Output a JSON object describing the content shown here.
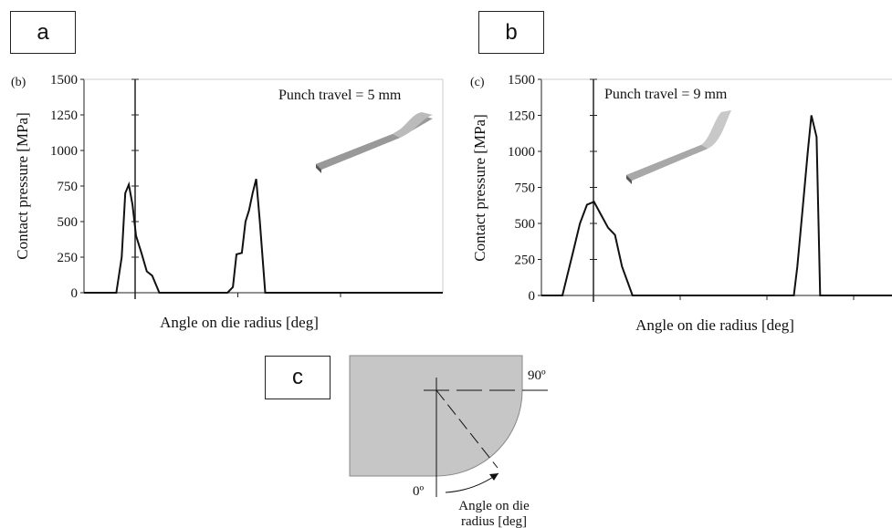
{
  "labels": {
    "a": "a",
    "b": "b",
    "c": "c"
  },
  "chart_data": [
    {
      "type": "line",
      "panel_tag": "(b)",
      "annotation": "Punch travel = 5 mm",
      "xlabel": "Angle on die radius [deg]",
      "ylabel": "Contact pressure [MPa]",
      "ylim": [
        0,
        1500
      ],
      "yticks": [
        0,
        250,
        500,
        750,
        1000,
        1250,
        1500
      ],
      "xlim": [
        0,
        10
      ],
      "grid": false,
      "series": [
        {
          "x": [
            0,
            0.9,
            1.05,
            1.15,
            1.25,
            1.35,
            1.45,
            1.6,
            1.75,
            1.9,
            2.1,
            2.4,
            3.5,
            4.0,
            4.15,
            4.25,
            4.4,
            4.5,
            4.6,
            4.7,
            4.8,
            4.9,
            5.05,
            10
          ],
          "y": [
            0,
            0,
            250,
            700,
            760,
            620,
            400,
            280,
            150,
            120,
            0,
            0,
            0,
            0,
            40,
            270,
            280,
            500,
            580,
            700,
            800,
            500,
            0,
            0
          ]
        }
      ]
    },
    {
      "type": "line",
      "panel_tag": "(c)",
      "annotation": "Punch travel = 9 mm",
      "xlabel": "Angle on die radius [deg]",
      "ylabel": "Contact pressure [MPa]",
      "ylim": [
        0,
        1500
      ],
      "yticks": [
        0,
        250,
        500,
        750,
        1000,
        1250,
        1500
      ],
      "xlim": [
        0,
        10
      ],
      "grid": false,
      "series": [
        {
          "x": [
            0,
            0.6,
            0.75,
            0.9,
            1.1,
            1.3,
            1.5,
            1.7,
            1.9,
            2.1,
            2.3,
            2.6,
            7.1,
            7.2,
            7.3,
            7.45,
            7.6,
            7.7,
            7.85,
            7.95,
            10
          ],
          "y": [
            0,
            0,
            150,
            300,
            500,
            630,
            650,
            560,
            470,
            420,
            200,
            0,
            0,
            0,
            200,
            600,
            1000,
            1250,
            1100,
            0,
            0
          ]
        }
      ]
    }
  ],
  "schematic": {
    "label_top": "90º",
    "label_bottom": "0º",
    "caption_line1": "Angle on die",
    "caption_line2": "radius [deg]"
  }
}
